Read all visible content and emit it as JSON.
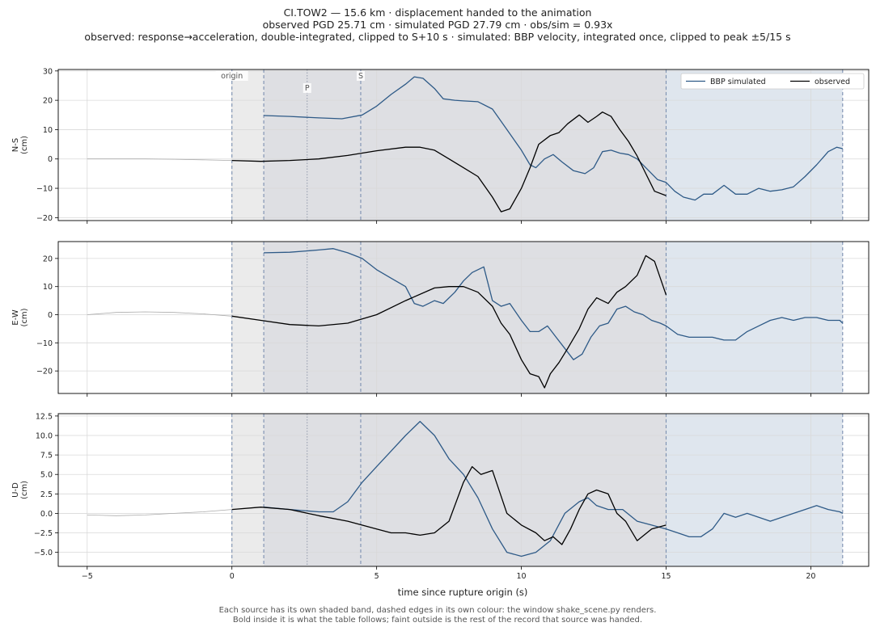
{
  "title_lines": [
    "CI.TOW2  —  15.6 km   ·   displacement handed to the animation",
    "observed PGD 25.71 cm   ·   simulated PGD 27.79 cm   ·   obs/sim = 0.93x",
    "observed: response→acceleration, double-integrated, clipped to S+10 s   ·   simulated: BBP velocity, integrated once, clipped to peak ±5/15 s"
  ],
  "caption_lines": [
    "Each source has its own shaded band, dashed edges in its own colour: the window shake_scene.py renders.",
    "Bold inside it is what the table follows;   faint outside is the rest of the record that source was handed."
  ],
  "colors": {
    "simulated": "#2e5a87",
    "observed": "#000000",
    "faint": "#aaaaaa",
    "obs_band": "#ebebeb",
    "sim_band": "#dfe6ee",
    "overlap_band": "#dedfe3",
    "edge_dash": "#7b8fb0"
  },
  "chart_data": {
    "type": "line",
    "xlabel": "time since rupture origin (s)",
    "xlim": [
      -6,
      22
    ],
    "xticks": [
      -5,
      0,
      5,
      10,
      15,
      20
    ],
    "markers": [
      {
        "label": "origin",
        "x": 0
      },
      {
        "label": "P",
        "x": 2.6
      },
      {
        "label": "S",
        "x": 4.45
      }
    ],
    "windows": {
      "observed": [
        0,
        15
      ],
      "simulated": [
        1.1,
        21.1
      ]
    },
    "legend": {
      "placement": "top-right",
      "entries": [
        "BBP simulated",
        "observed"
      ]
    },
    "panels": [
      {
        "ylabel": "N-S\n(cm)",
        "ylim": [
          -21,
          30.5
        ],
        "yticks": [
          -20,
          -10,
          0,
          10,
          20,
          30
        ],
        "ytick_labels": [
          "−20",
          "−10",
          "0",
          "10",
          "20",
          "30"
        ],
        "series": [
          {
            "name": "BBP simulated",
            "x": [
              1.1,
              2,
              3,
              3.8,
              4.5,
              5,
              5.5,
              6,
              6.3,
              6.6,
              7,
              7.3,
              7.7,
              8,
              8.5,
              9,
              9.5,
              10,
              10.3,
              10.5,
              10.8,
              11.1,
              11.4,
              11.8,
              12.2,
              12.5,
              12.8,
              13.1,
              13.4,
              13.7,
              14,
              14.3,
              14.7,
              15,
              15.3,
              15.6,
              16,
              16.3,
              16.6,
              17,
              17.4,
              17.8,
              18.2,
              18.6,
              19,
              19.4,
              19.8,
              20.2,
              20.6,
              20.9,
              21.1
            ],
            "y": [
              14.8,
              14.5,
              14,
              13.7,
              15,
              18,
              22,
              25.5,
              28,
              27.5,
              24,
              20.5,
              20,
              19.8,
              19.5,
              17,
              10,
              3,
              -2,
              -3,
              0,
              1.5,
              -1,
              -4,
              -5,
              -3,
              2.5,
              3,
              2,
              1.5,
              0,
              -3,
              -7,
              -8,
              -11,
              -13,
              -14,
              -12,
              -12,
              -9,
              -12,
              -12,
              -10,
              -11,
              -10.5,
              -9.5,
              -6,
              -2,
              2.5,
              4,
              3.5
            ]
          },
          {
            "name": "observed",
            "x": [
              0,
              1,
              2,
              3,
              4,
              5,
              6,
              6.5,
              7,
              7.5,
              8,
              8.5,
              9,
              9.3,
              9.6,
              10,
              10.3,
              10.6,
              11,
              11.3,
              11.6,
              12,
              12.3,
              12.6,
              12.8,
              13.1,
              13.4,
              13.7,
              14,
              14.3,
              14.6,
              15
            ],
            "y": [
              -0.5,
              -0.8,
              -0.5,
              0,
              1.2,
              2.8,
              4,
              4,
              3,
              0,
              -3,
              -6,
              -13,
              -18,
              -17,
              -10,
              -3,
              5,
              8,
              9,
              12,
              15,
              12.5,
              14.5,
              16,
              14.5,
              10,
              6,
              1,
              -5,
              -11,
              -12.5
            ]
          },
          {
            "name": "observed_faint",
            "x": [
              -5,
              -4,
              -3,
              -2,
              -1,
              0
            ],
            "y": [
              0,
              0,
              0,
              -0.1,
              -0.3,
              -0.5
            ]
          }
        ]
      },
      {
        "ylabel": "E-W\n(cm)",
        "ylim": [
          -28,
          26
        ],
        "yticks": [
          -20,
          -10,
          0,
          10,
          20
        ],
        "ytick_labels": [
          "−20",
          "−10",
          "0",
          "10",
          "20"
        ],
        "series": [
          {
            "name": "BBP simulated",
            "x": [
              1.1,
              2,
              3,
              3.5,
              4,
              4.5,
              5,
              5.5,
              6,
              6.3,
              6.6,
              7,
              7.3,
              7.7,
              8,
              8.3,
              8.7,
              9,
              9.3,
              9.6,
              10,
              10.3,
              10.6,
              10.9,
              11.2,
              11.5,
              11.8,
              12.1,
              12.4,
              12.7,
              13,
              13.3,
              13.6,
              13.9,
              14.2,
              14.5,
              14.8,
              15,
              15.4,
              15.8,
              16.2,
              16.6,
              17,
              17.4,
              17.8,
              18.2,
              18.6,
              19,
              19.4,
              19.8,
              20.2,
              20.6,
              21,
              21.1
            ],
            "y": [
              22,
              22.2,
              23,
              23.5,
              22,
              20,
              16,
              13,
              10,
              4,
              3,
              5,
              4,
              8,
              12,
              15,
              17,
              5,
              3,
              4,
              -2,
              -6,
              -6,
              -4,
              -8,
              -12,
              -16,
              -14,
              -8,
              -4,
              -3,
              2,
              3,
              1,
              0,
              -2,
              -3,
              -4,
              -7,
              -8,
              -8,
              -8,
              -9,
              -9,
              -6,
              -4,
              -2,
              -1,
              -2,
              -1,
              -1,
              -2,
              -2,
              -3
            ]
          },
          {
            "name": "observed",
            "x": [
              0,
              1,
              2,
              3,
              4,
              5,
              6,
              7,
              7.5,
              8,
              8.5,
              9,
              9.3,
              9.6,
              10,
              10.3,
              10.6,
              10.8,
              11,
              11.3,
              11.6,
              12,
              12.3,
              12.6,
              13,
              13.3,
              13.6,
              14,
              14.3,
              14.6,
              15
            ],
            "y": [
              -0.5,
              -2,
              -3.5,
              -4,
              -3,
              0,
              5,
              9.5,
              10,
              10,
              8,
              3,
              -3,
              -7,
              -16,
              -21,
              -22,
              -26,
              -21,
              -17,
              -12,
              -5,
              2,
              6,
              4,
              8,
              10,
              14,
              21,
              19,
              7
            ]
          },
          {
            "name": "observed_faint",
            "x": [
              -5,
              -4,
              -3,
              -2,
              -1,
              0
            ],
            "y": [
              0,
              0.8,
              1,
              0.8,
              0.3,
              -0.5
            ]
          }
        ]
      },
      {
        "ylabel": "U-D\n(cm)",
        "ylim": [
          -6.8,
          12.8
        ],
        "yticks": [
          -5,
          -2.5,
          0,
          2.5,
          5,
          7.5,
          10,
          12.5
        ],
        "ytick_labels": [
          "−5.0",
          "−2.5",
          "0.0",
          "2.5",
          "5.0",
          "7.5",
          "10.0",
          "12.5"
        ],
        "series": [
          {
            "name": "BBP simulated",
            "x": [
              1.1,
              2,
              3,
              3.5,
              4,
              4.5,
              5,
              5.5,
              6,
              6.5,
              7,
              7.5,
              8,
              8.5,
              9,
              9.5,
              10,
              10.5,
              11,
              11.5,
              12,
              12.3,
              12.6,
              13,
              13.5,
              14,
              14.5,
              15,
              15.4,
              15.8,
              16.2,
              16.6,
              17,
              17.4,
              17.8,
              18.2,
              18.6,
              19,
              19.4,
              19.8,
              20.2,
              20.6,
              21,
              21.1
            ],
            "y": [
              0.8,
              0.5,
              0.2,
              0.2,
              1.5,
              4,
              6,
              8,
              10,
              11.8,
              10,
              7,
              5,
              2,
              -2,
              -5,
              -5.5,
              -5,
              -3.5,
              0,
              1.5,
              2,
              1,
              0.5,
              0.5,
              -1,
              -1.5,
              -2,
              -2.5,
              -3,
              -3,
              -2,
              0,
              -0.5,
              0,
              -0.5,
              -1,
              -0.5,
              0,
              0.5,
              1,
              0.5,
              0.2,
              0
            ]
          },
          {
            "name": "observed",
            "x": [
              0,
              1,
              2,
              3,
              4,
              5,
              5.5,
              6,
              6.5,
              7,
              7.5,
              8,
              8.3,
              8.6,
              9,
              9.5,
              10,
              10.5,
              10.8,
              11.1,
              11.4,
              11.7,
              12,
              12.3,
              12.6,
              13,
              13.3,
              13.6,
              14,
              14.5,
              15
            ],
            "y": [
              0.5,
              0.8,
              0.5,
              -0.3,
              -1,
              -2,
              -2.5,
              -2.5,
              -2.8,
              -2.5,
              -1,
              4,
              6,
              5,
              5.5,
              0,
              -1.5,
              -2.5,
              -3.5,
              -3,
              -4,
              -2,
              0.5,
              2.5,
              3,
              2.5,
              0,
              -1,
              -3.5,
              -2,
              -1.5
            ]
          },
          {
            "name": "observed_faint",
            "x": [
              -5,
              -4,
              -3,
              -2,
              -1,
              0
            ],
            "y": [
              -0.2,
              -0.3,
              -0.2,
              0,
              0.2,
              0.5
            ]
          }
        ]
      }
    ]
  }
}
